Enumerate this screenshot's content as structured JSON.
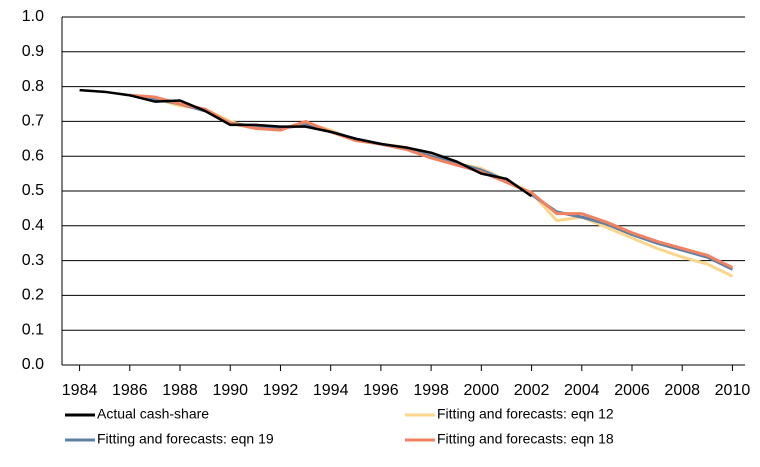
{
  "chart_data": {
    "type": "line",
    "x": [
      1984,
      1985,
      1986,
      1987,
      1988,
      1989,
      1990,
      1991,
      1992,
      1993,
      1994,
      1995,
      1996,
      1997,
      1998,
      1999,
      2000,
      2001,
      2002,
      2003,
      2004,
      2005,
      2006,
      2007,
      2008,
      2009,
      2010
    ],
    "series": [
      {
        "name": "Actual cash-share",
        "color": "#000000",
        "values": [
          0.79,
          0.785,
          0.775,
          0.757,
          0.76,
          0.73,
          0.69,
          0.69,
          0.685,
          0.685,
          0.67,
          0.65,
          0.635,
          0.625,
          0.61,
          0.585,
          0.55,
          0.535,
          0.485,
          null,
          null,
          null,
          null,
          null,
          null,
          null,
          null
        ]
      },
      {
        "name": "Fitting and forecasts: eqn 12",
        "color": "#fad68c",
        "values": [
          null,
          null,
          0.775,
          0.765,
          0.745,
          0.735,
          0.7,
          0.68,
          0.68,
          0.695,
          0.675,
          0.645,
          0.635,
          0.625,
          0.605,
          0.58,
          0.565,
          0.53,
          0.495,
          0.415,
          0.425,
          0.395,
          0.365,
          0.335,
          0.31,
          0.29,
          0.255
        ]
      },
      {
        "name": "Fitting and forecasts: eqn 19",
        "color": "#5b7fa6",
        "values": [
          null,
          null,
          0.775,
          0.765,
          0.75,
          0.73,
          0.695,
          0.685,
          0.68,
          0.69,
          0.67,
          0.65,
          0.635,
          0.62,
          0.6,
          0.58,
          0.56,
          0.53,
          0.49,
          0.44,
          0.425,
          0.405,
          0.375,
          0.35,
          0.33,
          0.31,
          0.275
        ]
      },
      {
        "name": "Fitting and forecasts: eqn 18",
        "color": "#f08262",
        "values": [
          null,
          null,
          0.775,
          0.77,
          0.75,
          0.735,
          0.695,
          0.68,
          0.675,
          0.7,
          0.67,
          0.645,
          0.635,
          0.62,
          0.595,
          0.575,
          0.555,
          0.525,
          0.495,
          0.435,
          0.435,
          0.41,
          0.38,
          0.355,
          0.335,
          0.315,
          0.28
        ]
      }
    ],
    "xlim": [
      1983.3,
      2010.5
    ],
    "xticks": [
      1984,
      1986,
      1988,
      1990,
      1992,
      1994,
      1996,
      1998,
      2000,
      2002,
      2004,
      2006,
      2008,
      2010
    ],
    "ylim": [
      0,
      1
    ],
    "yticks": [
      {
        "value": 0,
        "label": "0.0"
      },
      0.1,
      0.2,
      0.3,
      0.4,
      0.5,
      0.6,
      0.7,
      0.8,
      0.9,
      {
        "value": 1,
        "label": "1.0"
      }
    ],
    "grid": true,
    "legend": "bottom"
  }
}
